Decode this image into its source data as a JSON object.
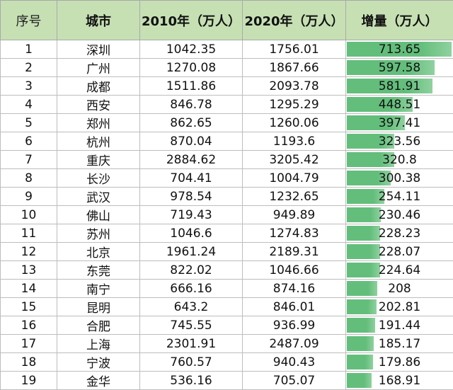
{
  "headers": [
    "序号",
    "城市",
    "2010年（万人）",
    "2020年（万人）",
    "增量（万人）"
  ],
  "rows": [
    {
      "idx": "1",
      "city": "深圳",
      "y2010": "1042.35",
      "y2020": "1756.01",
      "inc": "713.65",
      "inc_value": 713.65
    },
    {
      "idx": "2",
      "city": "广州",
      "y2010": "1270.08",
      "y2020": "1867.66",
      "inc": "597.58",
      "inc_value": 597.58
    },
    {
      "idx": "3",
      "city": "成都",
      "y2010": "1511.86",
      "y2020": "2093.78",
      "inc": "581.91",
      "inc_value": 581.91
    },
    {
      "idx": "4",
      "city": "西安",
      "y2010": "846.78",
      "y2020": "1295.29",
      "inc": "448.51",
      "inc_value": 448.51
    },
    {
      "idx": "5",
      "city": "郑州",
      "y2010": "862.65",
      "y2020": "1260.06",
      "inc": "397.41",
      "inc_value": 397.41
    },
    {
      "idx": "6",
      "city": "杭州",
      "y2010": "870.04",
      "y2020": "1193.6",
      "inc": "323.56",
      "inc_value": 323.56
    },
    {
      "idx": "7",
      "city": "重庆",
      "y2010": "2884.62",
      "y2020": "3205.42",
      "inc": "320.8",
      "inc_value": 320.8
    },
    {
      "idx": "8",
      "city": "长沙",
      "y2010": "704.41",
      "y2020": "1004.79",
      "inc": "300.38",
      "inc_value": 300.38
    },
    {
      "idx": "9",
      "city": "武汉",
      "y2010": "978.54",
      "y2020": "1232.65",
      "inc": "254.11",
      "inc_value": 254.11
    },
    {
      "idx": "10",
      "city": "佛山",
      "y2010": "719.43",
      "y2020": "949.89",
      "inc": "230.46",
      "inc_value": 230.46
    },
    {
      "idx": "11",
      "city": "苏州",
      "y2010": "1046.6",
      "y2020": "1274.83",
      "inc": "228.23",
      "inc_value": 228.23
    },
    {
      "idx": "12",
      "city": "北京",
      "y2010": "1961.24",
      "y2020": "2189.31",
      "inc": "228.07",
      "inc_value": 228.07
    },
    {
      "idx": "13",
      "city": "东莞",
      "y2010": "822.02",
      "y2020": "1046.66",
      "inc": "224.64",
      "inc_value": 224.64
    },
    {
      "idx": "14",
      "city": "南宁",
      "y2010": "666.16",
      "y2020": "874.16",
      "inc": "208",
      "inc_value": 208
    },
    {
      "idx": "15",
      "city": "昆明",
      "y2010": "643.2",
      "y2020": "846.01",
      "inc": "202.81",
      "inc_value": 202.81
    },
    {
      "idx": "16",
      "city": "合肥",
      "y2010": "745.55",
      "y2020": "936.99",
      "inc": "191.44",
      "inc_value": 191.44
    },
    {
      "idx": "17",
      "city": "上海",
      "y2010": "2301.91",
      "y2020": "2487.09",
      "inc": "185.17",
      "inc_value": 185.17
    },
    {
      "idx": "18",
      "city": "宁波",
      "y2010": "760.57",
      "y2020": "940.43",
      "inc": "179.86",
      "inc_value": 179.86
    },
    {
      "idx": "19",
      "city": "金华",
      "y2010": "536.16",
      "y2020": "705.07",
      "inc": "168.91",
      "inc_value": 168.91
    }
  ],
  "bar_max": 713.65,
  "colors": {
    "header_bg": "#c6e0b4",
    "bar": "#63be7b"
  }
}
